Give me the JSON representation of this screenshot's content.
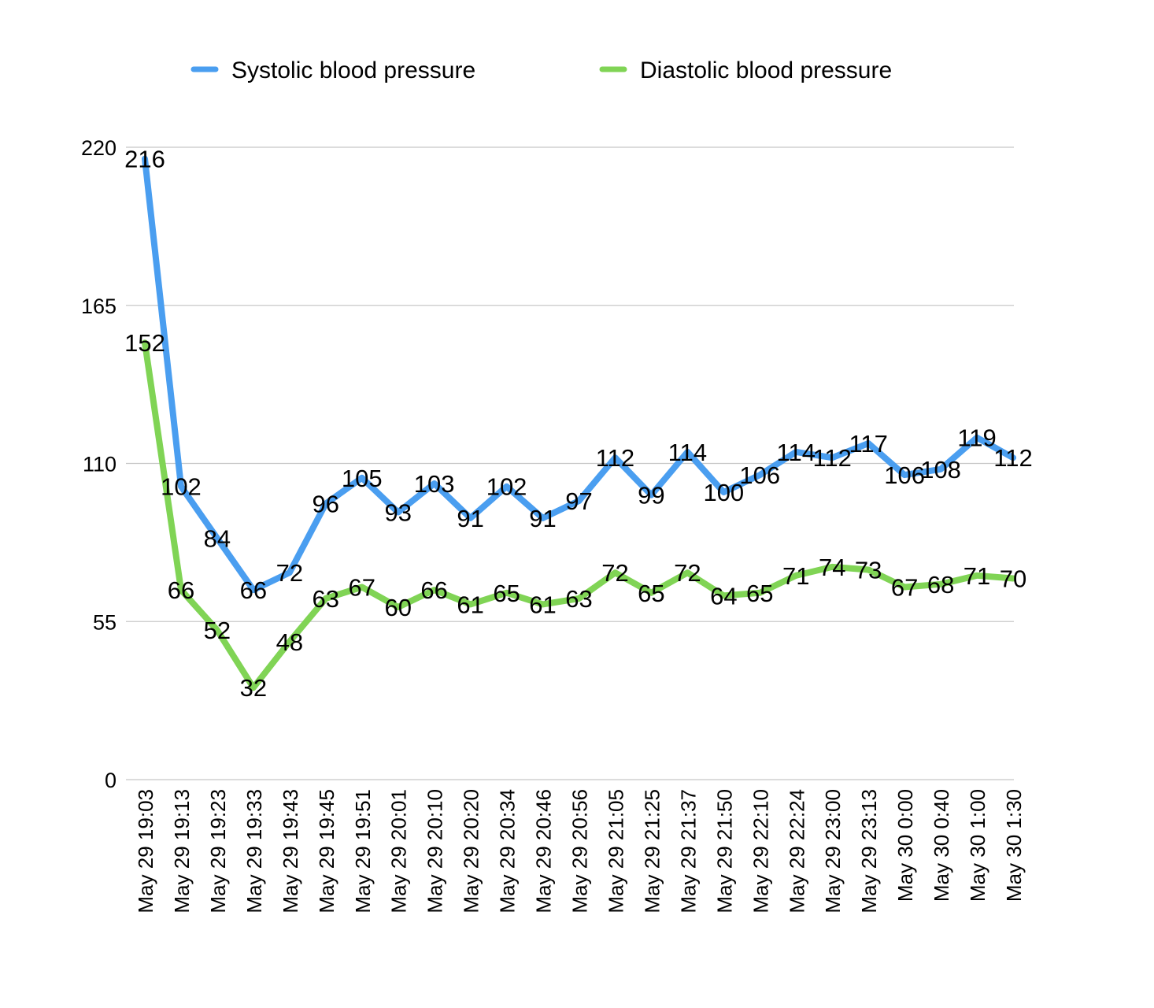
{
  "chart_data": {
    "type": "line",
    "title": "",
    "xlabel": "",
    "ylabel": "",
    "ylim": [
      0,
      220
    ],
    "yticks": [
      0,
      55,
      110,
      165,
      220
    ],
    "grid": true,
    "legend_position": "top",
    "categories": [
      "May 29 19:03",
      "May 29 19:13",
      "May 29 19:23",
      "May 29 19:33",
      "May 29 19:43",
      "May 29 19:45",
      "May 29 19:51",
      "May 29 20:01",
      "May 29 20:10",
      "May 29 20:20",
      "May 29 20:34",
      "May 29 20:46",
      "May 29 20:56",
      "May 29 21:05",
      "May 29 21:25",
      "May 29 21:37",
      "May 29 21:50",
      "May 29 22:10",
      "May 29 22:24",
      "May 29 23:00",
      "May 29 23:13",
      "May 30 0:00",
      "May 30 0:40",
      "May 30 1:00",
      "May 30 1:30"
    ],
    "series": [
      {
        "name": "Systolic blood pressure",
        "color": "#4a9ef0",
        "values": [
          216,
          102,
          84,
          66,
          72,
          96,
          105,
          93,
          103,
          91,
          102,
          91,
          97,
          112,
          99,
          114,
          100,
          106,
          114,
          112,
          117,
          106,
          108,
          119,
          112
        ]
      },
      {
        "name": "Diastolic blood pressure",
        "color": "#80d455",
        "values": [
          152,
          66,
          52,
          32,
          48,
          63,
          67,
          60,
          66,
          61,
          65,
          61,
          63,
          72,
          65,
          72,
          64,
          65,
          71,
          74,
          73,
          67,
          68,
          71,
          70
        ]
      }
    ]
  }
}
